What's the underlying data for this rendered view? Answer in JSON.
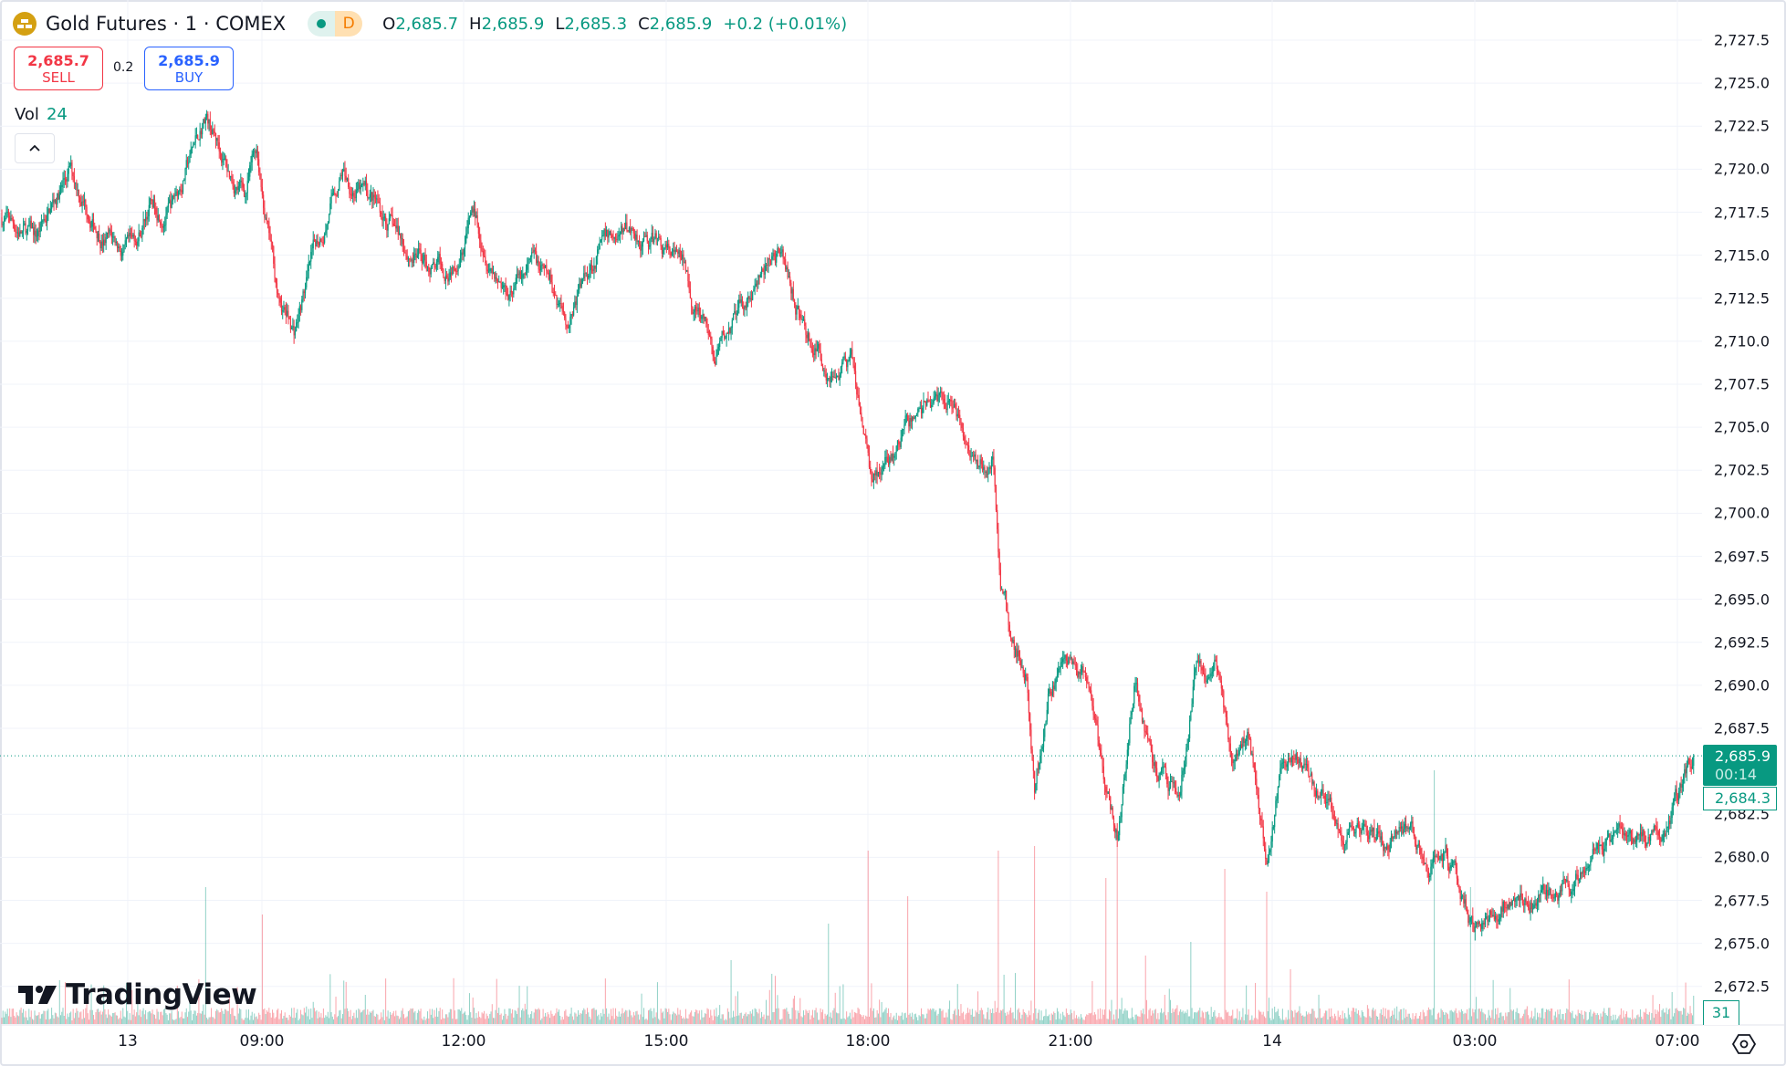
{
  "header": {
    "title": "Gold Futures · 1 · COMEX",
    "status_badge": "D",
    "ohlc": {
      "o_label": "O",
      "o": "2,685.7",
      "h_label": "H",
      "h": "2,685.9",
      "l_label": "L",
      "l": "2,685.3",
      "c_label": "C",
      "c": "2,685.9",
      "change": "+0.2 (+0.01%)"
    }
  },
  "trade": {
    "sell_price": "2,685.7",
    "sell_label": "SELL",
    "spread": "0.2",
    "buy_price": "2,685.9",
    "buy_label": "BUY"
  },
  "volume_legend": {
    "label": "Vol",
    "value": "24"
  },
  "price_axis": {
    "last_price": "2,685.9",
    "countdown": "00:14",
    "prev_label": "2,684.3",
    "volume_label": "31"
  },
  "branding": {
    "logo_text": "TradingView"
  },
  "colors": {
    "up": "#089981",
    "down": "#f23645",
    "grid": "#f0f3fa",
    "last_line": "#089981"
  },
  "chart_data": {
    "type": "candlestick",
    "title": "Gold Futures · 1 · COMEX",
    "ylim": [
      2670.5,
      2729.0
    ],
    "y_ticks": [
      "2,727.5",
      "2,725.0",
      "2,722.5",
      "2,720.0",
      "2,717.5",
      "2,715.0",
      "2,712.5",
      "2,710.0",
      "2,707.5",
      "2,705.0",
      "2,702.5",
      "2,700.0",
      "2,697.5",
      "2,695.0",
      "2,692.5",
      "2,690.0",
      "2,687.5",
      "2,682.5",
      "2,680.0",
      "2,677.5",
      "2,675.0",
      "2,672.5"
    ],
    "x_ticks": [
      "13",
      "09:00",
      "12:00",
      "15:00",
      "18:00",
      "21:00",
      "14",
      "03:00",
      "07:00"
    ],
    "bars": 1495,
    "last_price": 2685.9,
    "price_path": [
      [
        0,
        2717.2
      ],
      [
        30,
        2715.9
      ],
      [
        60,
        2719.9
      ],
      [
        90,
        2716.3
      ],
      [
        115,
        2714.9
      ],
      [
        130,
        2717.9
      ],
      [
        150,
        2717.9
      ],
      [
        170,
        2721.2
      ],
      [
        180,
        2723.2
      ],
      [
        200,
        2719.9
      ],
      [
        215,
        2718.6
      ],
      [
        225,
        2721.2
      ],
      [
        245,
        2712.0
      ],
      [
        258,
        2710.6
      ],
      [
        275,
        2714.6
      ],
      [
        300,
        2719.9
      ],
      [
        330,
        2717.9
      ],
      [
        360,
        2715.3
      ],
      [
        390,
        2713.9
      ],
      [
        415,
        2717.6
      ],
      [
        445,
        2713.3
      ],
      [
        470,
        2714.3
      ],
      [
        500,
        2711.6
      ],
      [
        525,
        2715.3
      ],
      [
        555,
        2716.6
      ],
      [
        580,
        2715.6
      ],
      [
        605,
        2713.9
      ],
      [
        630,
        2708.6
      ],
      [
        660,
        2712.6
      ],
      [
        685,
        2715.0
      ],
      [
        710,
        2710.6
      ],
      [
        730,
        2708.6
      ],
      [
        750,
        2708.6
      ],
      [
        768,
        2702.0
      ],
      [
        790,
        2703.3
      ],
      [
        800,
        2705.0
      ],
      [
        820,
        2706.7
      ],
      [
        840,
        2706.7
      ],
      [
        860,
        2703.3
      ],
      [
        875,
        2703.3
      ],
      [
        882,
        2696.7
      ],
      [
        893,
        2692.8
      ],
      [
        905,
        2690.8
      ],
      [
        912,
        2683.5
      ],
      [
        925,
        2690.1
      ],
      [
        945,
        2691.4
      ],
      [
        960,
        2690.1
      ],
      [
        975,
        2683.5
      ],
      [
        985,
        2681.5
      ],
      [
        1000,
        2690.1
      ],
      [
        1020,
        2684.8
      ],
      [
        1040,
        2683.5
      ],
      [
        1055,
        2691.4
      ],
      [
        1075,
        2690.8
      ],
      [
        1085,
        2686.1
      ],
      [
        1100,
        2687.5
      ],
      [
        1117,
        2680.8
      ],
      [
        1130,
        2684.8
      ],
      [
        1145,
        2686.1
      ],
      [
        1165,
        2683.5
      ],
      [
        1185,
        2680.8
      ],
      [
        1200,
        2682.2
      ],
      [
        1220,
        2680.5
      ],
      [
        1245,
        2682.2
      ],
      [
        1260,
        2679.5
      ],
      [
        1275,
        2680.2
      ],
      [
        1300,
        2675.9
      ],
      [
        1320,
        2676.9
      ],
      [
        1340,
        2678.2
      ],
      [
        1360,
        2677.5
      ],
      [
        1390,
        2678.9
      ],
      [
        1410,
        2680.2
      ],
      [
        1440,
        2681.2
      ],
      [
        1470,
        2681.5
      ],
      [
        1480,
        2683.5
      ],
      [
        1494,
        2685.9
      ]
    ],
    "volume_spikes": [
      [
        110,
        45
      ],
      [
        180,
        150
      ],
      [
        230,
        120
      ],
      [
        644,
        70
      ],
      [
        680,
        55
      ],
      [
        730,
        110
      ],
      [
        765,
        190
      ],
      [
        800,
        140
      ],
      [
        880,
        190
      ],
      [
        912,
        195
      ],
      [
        975,
        160
      ],
      [
        985,
        195
      ],
      [
        1010,
        75
      ],
      [
        1050,
        90
      ],
      [
        1080,
        170
      ],
      [
        1117,
        145
      ],
      [
        1138,
        60
      ],
      [
        1265,
        278
      ],
      [
        1297,
        150
      ],
      [
        1475,
        35
      ],
      [
        1494,
        31
      ]
    ],
    "volume_ylim": [
      0,
      300
    ]
  }
}
